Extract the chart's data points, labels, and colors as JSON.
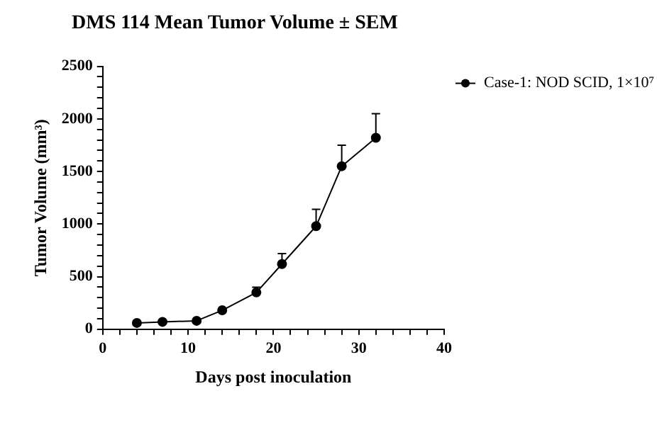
{
  "chart_data": {
    "type": "line",
    "title": "DMS 114 Mean Tumor Volume ± SEM",
    "xlabel": "Days post inoculation",
    "ylabel": "Tumor Volume (mm³)",
    "x": [
      4,
      7,
      11,
      14,
      18,
      21,
      25,
      28,
      32
    ],
    "series": [
      {
        "name": "Case-1: NOD SCID, 1×10⁷",
        "color": "#000000",
        "values": [
          60,
          70,
          80,
          180,
          350,
          620,
          980,
          1550,
          1820
        ],
        "errors": [
          null,
          null,
          null,
          null,
          [
            350,
            400
          ],
          [
            620,
            720
          ],
          [
            980,
            1140
          ],
          [
            1550,
            1750
          ],
          [
            1820,
            2050
          ]
        ]
      }
    ],
    "xlim": [
      0,
      40
    ],
    "xticks": [
      0,
      {
        "value": 2,
        "label": null
      },
      {
        "value": 4,
        "label": null
      },
      {
        "value": 6,
        "label": null
      },
      {
        "value": 8,
        "label": null
      },
      10,
      {
        "value": 12,
        "label": null
      },
      {
        "value": 14,
        "label": null
      },
      {
        "value": 16,
        "label": null
      },
      {
        "value": 18,
        "label": null
      },
      20,
      {
        "value": 22,
        "label": null
      },
      {
        "value": 24,
        "label": null
      },
      {
        "value": 26,
        "label": null
      },
      {
        "value": 28,
        "label": null
      },
      30,
      {
        "value": 32,
        "label": null
      },
      {
        "value": 34,
        "label": null
      },
      {
        "value": 36,
        "label": null
      },
      {
        "value": 38,
        "label": null
      },
      40
    ],
    "ylim": [
      0,
      2500
    ],
    "yticks": [
      0,
      {
        "value": 100,
        "label": null
      },
      {
        "value": 200,
        "label": null
      },
      {
        "value": 300,
        "label": null
      },
      {
        "value": 400,
        "label": null
      },
      500,
      {
        "value": 600,
        "label": null
      },
      {
        "value": 700,
        "label": null
      },
      {
        "value": 800,
        "label": null
      },
      {
        "value": 900,
        "label": null
      },
      1000,
      {
        "value": 1100,
        "label": null
      },
      {
        "value": 1200,
        "label": null
      },
      {
        "value": 1300,
        "label": null
      },
      {
        "value": 1400,
        "label": null
      },
      1500,
      {
        "value": 1600,
        "label": null
      },
      {
        "value": 1700,
        "label": null
      },
      {
        "value": 1800,
        "label": null
      },
      {
        "value": 1900,
        "label": null
      },
      2000,
      {
        "value": 2100,
        "label": null
      },
      {
        "value": 2200,
        "label": null
      },
      {
        "value": 2300,
        "label": null
      },
      {
        "value": 2400,
        "label": null
      },
      2500
    ],
    "grid": false,
    "legend": "right",
    "marker": "circle",
    "line_style": "solid"
  }
}
